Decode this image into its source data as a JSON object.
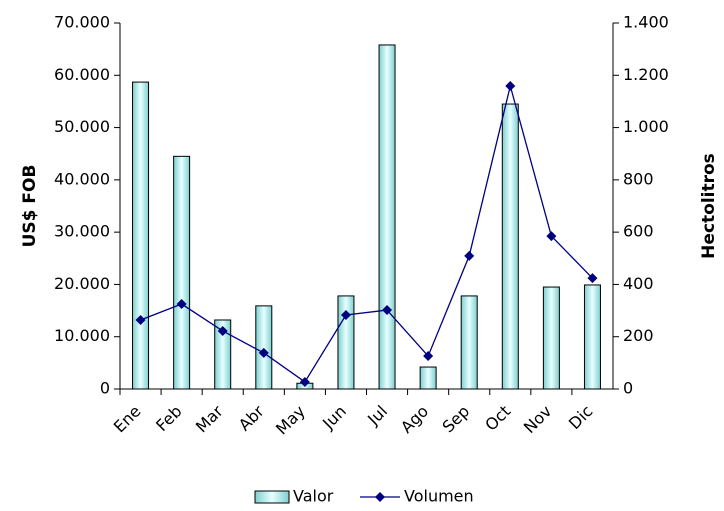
{
  "chart_data": {
    "type": "bar-line",
    "categories": [
      "Ene",
      "Feb",
      "Mar",
      "Abr",
      "May",
      "Jun",
      "Jul",
      "Ago",
      "Sep",
      "Oct",
      "Nov",
      "Dic"
    ],
    "ylabel": "US$ FOB",
    "y2label": "Hectolitros",
    "ylim": [
      0,
      70000
    ],
    "yticks": [
      0,
      {
        "value": 10000,
        "label": "10.000"
      },
      {
        "value": 20000,
        "label": "20.000"
      },
      {
        "value": 30000,
        "label": "30.000"
      },
      {
        "value": 40000,
        "label": "40.000"
      },
      {
        "value": 50000,
        "label": "50.000"
      },
      {
        "value": 60000,
        "label": "60.000"
      },
      {
        "value": 70000,
        "label": "70.000"
      }
    ],
    "y2lim": [
      0,
      1400
    ],
    "y2ticks": [
      0,
      200,
      400,
      600,
      800,
      {
        "value": 1000,
        "label": "1.000"
      },
      {
        "value": 1200,
        "label": "1.200"
      },
      {
        "value": 1400,
        "label": "1.400"
      }
    ],
    "series": [
      {
        "name": "Valor",
        "type": "bar",
        "color": "#bfefef",
        "values": [
          58700,
          44500,
          13200,
          15900,
          1100,
          17800,
          65800,
          4200,
          17800,
          54500,
          19500,
          19900
        ]
      },
      {
        "name": "Volumen",
        "type": "line",
        "axis": "y2",
        "color": "#000080",
        "values": [
          264,
          325,
          222,
          138,
          27,
          283,
          302,
          126,
          509,
          1159,
          585,
          424
        ]
      }
    ]
  }
}
